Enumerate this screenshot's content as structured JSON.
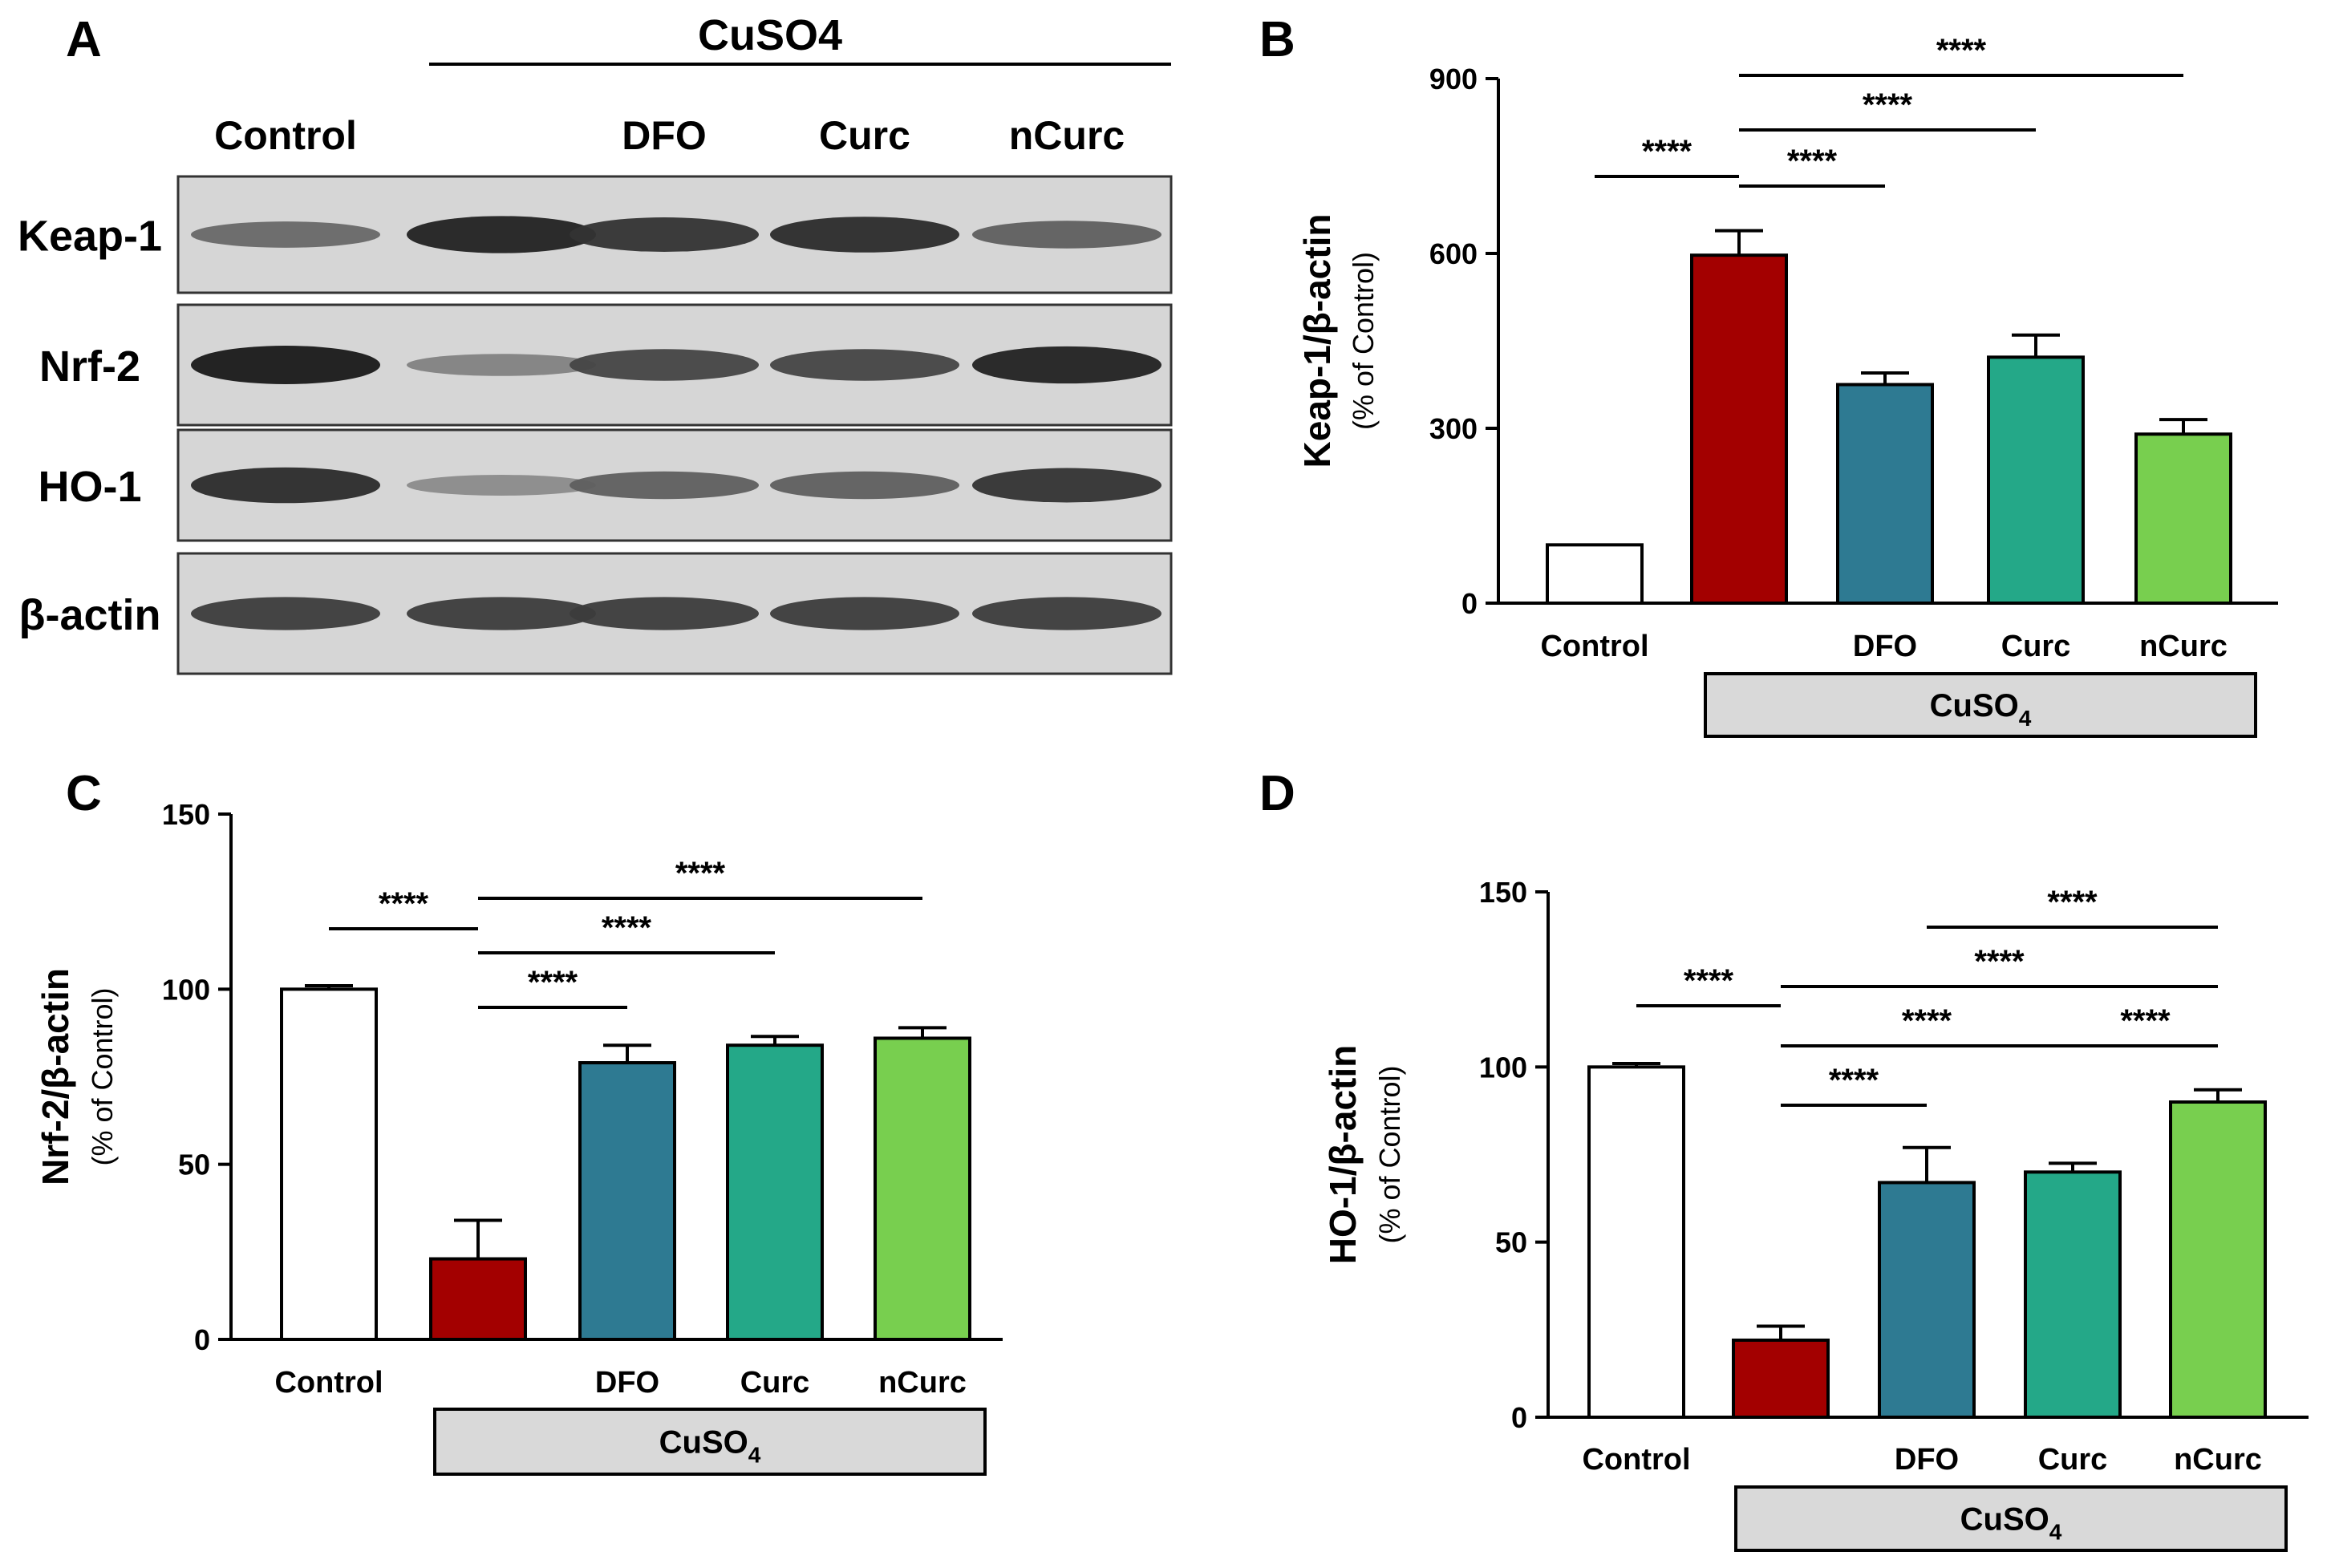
{
  "blot": {
    "letter": "A",
    "treatment_label": "CuSO4",
    "lanes": [
      "Control",
      "",
      "DFO",
      "Curc",
      "nCurc"
    ],
    "rows": [
      {
        "label": "Keap-1",
        "intensity": [
          0.55,
          0.95,
          0.85,
          0.9,
          0.6
        ]
      },
      {
        "label": "Nrf-2",
        "intensity": [
          1.0,
          0.4,
          0.75,
          0.75,
          0.95
        ]
      },
      {
        "label": "HO-1",
        "intensity": [
          0.9,
          0.35,
          0.6,
          0.6,
          0.85
        ]
      },
      {
        "label": "β-actin",
        "intensity": [
          0.8,
          0.8,
          0.8,
          0.8,
          0.8
        ]
      }
    ]
  },
  "chart_data": [
    {
      "letter": "B",
      "type": "bar",
      "categories": [
        "Control",
        "",
        "DFO",
        "Curc",
        "nCurc"
      ],
      "values": [
        100,
        597,
        375,
        422,
        290
      ],
      "errors": [
        0,
        42,
        20,
        38,
        25
      ],
      "colors": [
        "#ffffff",
        "#a30000",
        "#2e7a92",
        "#24a888",
        "#78cf4f"
      ],
      "ylabel": "Keap-1/β-actin",
      "ylabel_sub": "(% of Control)",
      "ylim": [
        0,
        900
      ],
      "yticks": [
        0,
        300,
        600,
        900
      ],
      "group_label": "CuSO4",
      "comparisons": [
        {
          "from": 0,
          "to": 1,
          "label": "****"
        },
        {
          "from": 1,
          "to": 2,
          "label": "****"
        },
        {
          "from": 1,
          "to": 3,
          "label": "****"
        },
        {
          "from": 1,
          "to": 4,
          "label": "****"
        }
      ]
    },
    {
      "letter": "C",
      "type": "bar",
      "categories": [
        "Control",
        "",
        "DFO",
        "Curc",
        "nCurc"
      ],
      "values": [
        100,
        23,
        79,
        84,
        86
      ],
      "errors": [
        1,
        11,
        5,
        2.5,
        3
      ],
      "colors": [
        "#ffffff",
        "#a30000",
        "#2e7a92",
        "#24a888",
        "#78cf4f"
      ],
      "ylabel": "Nrf-2/β-actin",
      "ylabel_sub": "(% of Control)",
      "ylim": [
        0,
        150
      ],
      "yticks": [
        0,
        50,
        100,
        150
      ],
      "group_label": "CuSO4",
      "comparisons": [
        {
          "from": 0,
          "to": 1,
          "label": "****"
        },
        {
          "from": 1,
          "to": 2,
          "label": "****"
        },
        {
          "from": 1,
          "to": 3,
          "label": "****"
        },
        {
          "from": 1,
          "to": 4,
          "label": "****"
        }
      ]
    },
    {
      "letter": "D",
      "type": "bar",
      "categories": [
        "Control",
        "",
        "DFO",
        "Curc",
        "nCurc"
      ],
      "values": [
        100,
        22,
        67,
        70,
        90
      ],
      "errors": [
        1,
        4,
        10,
        2.5,
        3.5
      ],
      "colors": [
        "#ffffff",
        "#a30000",
        "#2e7a92",
        "#24a888",
        "#78cf4f"
      ],
      "ylabel": "HO-1/β-actin",
      "ylabel_sub": "(% of Control)",
      "ylim": [
        0,
        150
      ],
      "yticks": [
        0,
        50,
        100,
        150
      ],
      "group_label": "CuSO4",
      "comparisons": [
        {
          "from": 0,
          "to": 1,
          "label": "****"
        },
        {
          "from": 1,
          "to": 2,
          "label": "****"
        },
        {
          "from": 1,
          "to": 3,
          "label": "****"
        },
        {
          "from": 3,
          "to": 4,
          "label": "****"
        },
        {
          "from": 1,
          "to": 4,
          "label": "****"
        },
        {
          "from": 2,
          "to": 4,
          "label": "****"
        }
      ]
    }
  ]
}
